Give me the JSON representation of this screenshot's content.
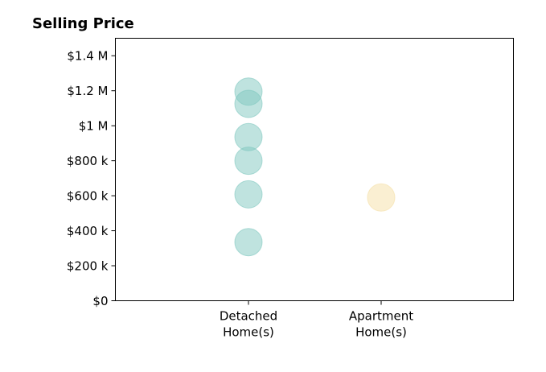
{
  "chart_data": {
    "type": "scatter",
    "title": "Selling Price",
    "xlabel": "",
    "ylabel": "",
    "categories": [
      "Detached\nHome(s)",
      "Apartment\nHome(s)"
    ],
    "ylim": [
      0,
      1500000
    ],
    "y_ticks": [
      {
        "value": 0,
        "label": "$0"
      },
      {
        "value": 200000,
        "label": "$200 k"
      },
      {
        "value": 400000,
        "label": "$400 k"
      },
      {
        "value": 600000,
        "label": "$600 k"
      },
      {
        "value": 800000,
        "label": "$800 k"
      },
      {
        "value": 1000000,
        "label": "$1 M"
      },
      {
        "value": 1200000,
        "label": "$1.2 M"
      },
      {
        "value": 1400000,
        "label": "$1.4 M"
      }
    ],
    "grid": false,
    "legend": "none",
    "series": [
      {
        "category_index": 0,
        "color": "#80c8bf",
        "values": [
          1195000,
          1125000,
          935000,
          800000,
          608000,
          335000
        ]
      },
      {
        "category_index": 1,
        "color": "#f5dfa6",
        "values": [
          590000
        ]
      }
    ]
  }
}
